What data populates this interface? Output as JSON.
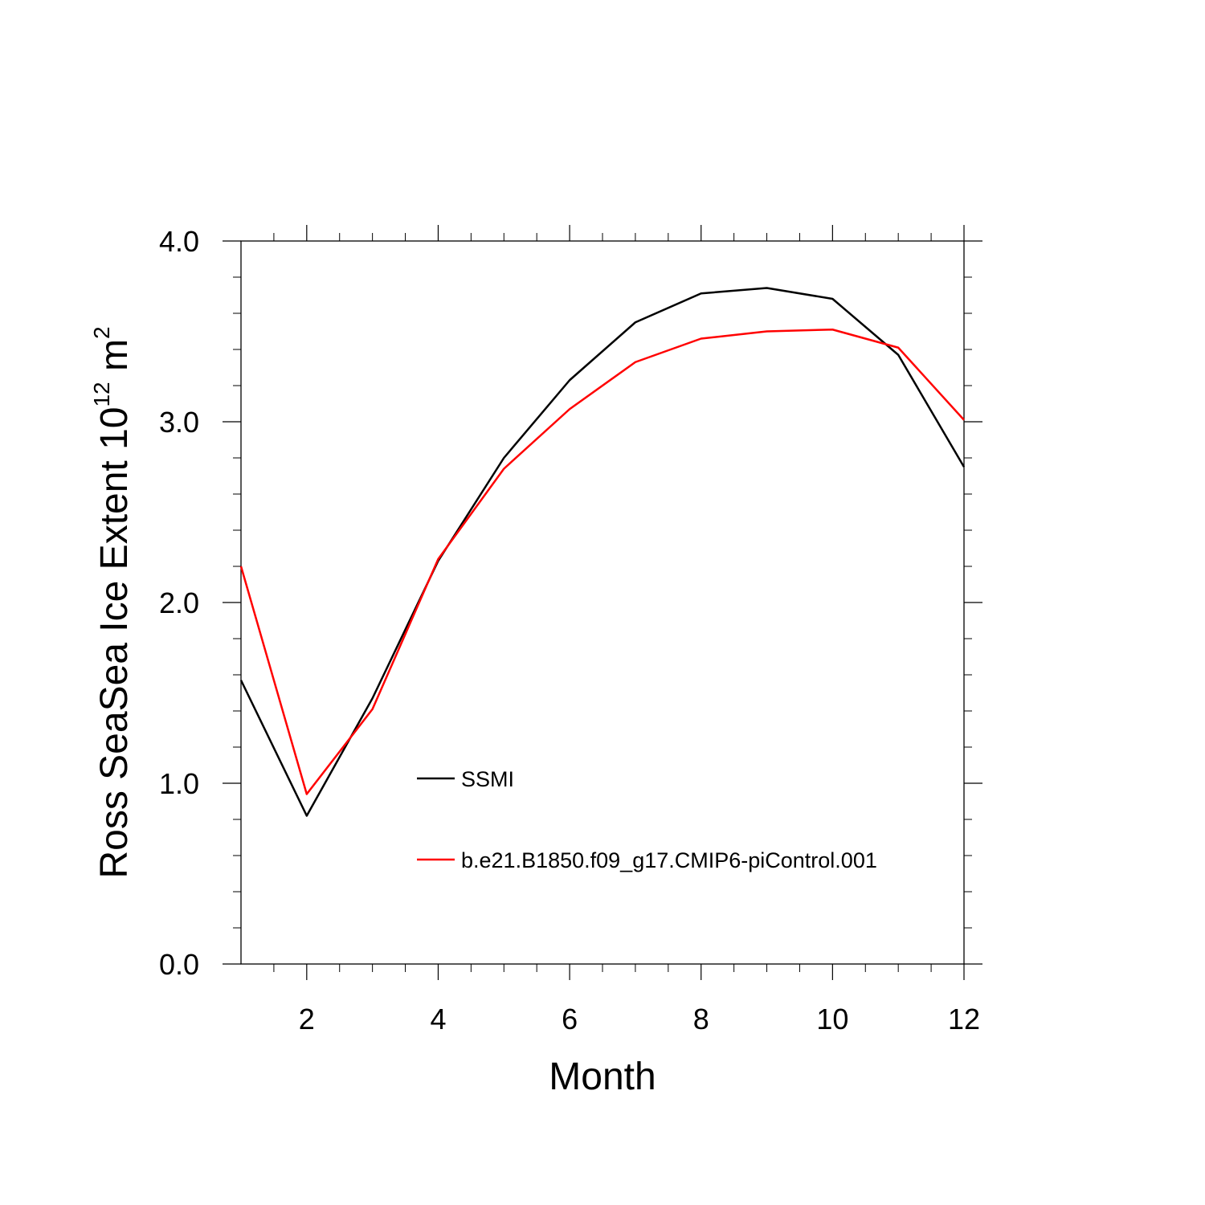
{
  "chart_data": {
    "type": "line",
    "title": "",
    "xlabel": "Month",
    "ylabel_main": "Ross SeaSea Ice Extent 10",
    "ylabel_exp1": "12",
    "ylabel_unit": " m",
    "ylabel_exp2": "2",
    "xlim": [
      1,
      12
    ],
    "ylim": [
      0,
      4
    ],
    "x_major_ticks": [
      2,
      4,
      6,
      8,
      10,
      12
    ],
    "x_tick_labels": [
      "2",
      "4",
      "6",
      "8",
      "10",
      "12"
    ],
    "y_major_ticks": [
      0,
      1,
      2,
      3,
      4
    ],
    "y_tick_labels": [
      "0.0",
      "1.0",
      "2.0",
      "3.0",
      "4.0"
    ],
    "grid": false,
    "legend_position": "center",
    "x": [
      1,
      2,
      3,
      4,
      5,
      6,
      7,
      8,
      9,
      10,
      11,
      12
    ],
    "series": [
      {
        "name": "SSMI",
        "color": "#000000",
        "values": [
          1.57,
          0.82,
          1.47,
          2.23,
          2.8,
          3.23,
          3.55,
          3.71,
          3.74,
          3.68,
          3.37,
          2.75
        ]
      },
      {
        "name": "b.e21.B1850.f09_g17.CMIP6-piControl.001",
        "color": "#ff0000",
        "values": [
          2.2,
          0.94,
          1.41,
          2.24,
          2.74,
          3.07,
          3.33,
          3.46,
          3.5,
          3.51,
          3.41,
          3.01
        ]
      }
    ]
  }
}
